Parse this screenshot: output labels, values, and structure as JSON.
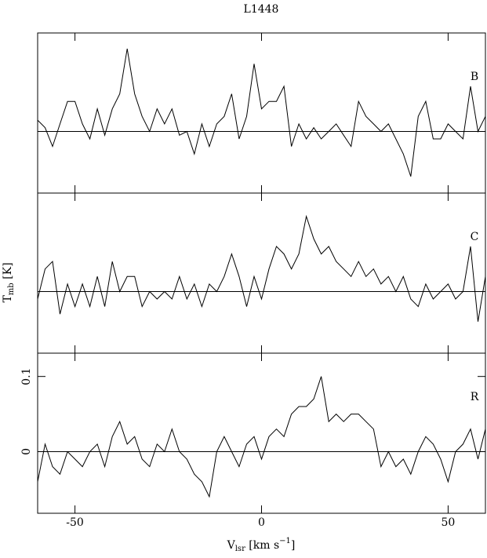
{
  "chart_data": {
    "type": "line",
    "title": "L1448",
    "x_label": {
      "main": "V",
      "sub": "lsr",
      "rest": " [km s",
      "sup": "−1",
      "end": "]"
    },
    "y_label": {
      "main": "T",
      "sub": "mb",
      "rest": " [K]"
    },
    "xlim": [
      -60,
      60
    ],
    "xticks": [
      -50,
      0,
      50
    ],
    "ylim": [
      -0.082,
      0.131
    ],
    "yticks": [
      0,
      0.1
    ],
    "x": [
      -60,
      -58,
      -56,
      -54,
      -52,
      -50,
      -48,
      -46,
      -44,
      -42,
      -40,
      -38,
      -36,
      -34,
      -32,
      -30,
      -28,
      -26,
      -24,
      -22,
      -20,
      -18,
      -16,
      -14,
      -12,
      -10,
      -8,
      -6,
      -4,
      -2,
      0,
      2,
      4,
      6,
      8,
      10,
      12,
      14,
      16,
      18,
      20,
      22,
      24,
      26,
      28,
      30,
      32,
      34,
      36,
      38,
      40,
      42,
      44,
      46,
      48,
      50,
      52,
      54,
      56,
      58,
      60
    ],
    "series": [
      {
        "name": "B",
        "color": "#000000",
        "values": [
          0.015,
          0.005,
          -0.02,
          0.01,
          0.04,
          0.04,
          0.01,
          -0.01,
          0.03,
          -0.005,
          0.03,
          0.05,
          0.11,
          0.05,
          0.02,
          0.0,
          0.03,
          0.01,
          0.03,
          -0.005,
          0.0,
          -0.03,
          0.01,
          -0.02,
          0.01,
          0.02,
          0.05,
          -0.01,
          0.02,
          0.09,
          0.03,
          0.04,
          0.04,
          0.06,
          -0.02,
          0.01,
          -0.01,
          0.005,
          -0.01,
          0.0,
          0.01,
          -0.005,
          -0.02,
          0.04,
          0.02,
          0.01,
          0.0,
          0.01,
          -0.01,
          -0.03,
          -0.06,
          0.02,
          0.04,
          -0.01,
          -0.01,
          0.01,
          0.0,
          -0.01,
          0.06,
          0.0,
          0.02
        ]
      },
      {
        "name": "C",
        "color": "#000000",
        "values": [
          -0.01,
          0.03,
          0.04,
          -0.03,
          0.01,
          -0.02,
          0.01,
          -0.02,
          0.02,
          -0.02,
          0.04,
          0.0,
          0.02,
          0.02,
          -0.02,
          0.0,
          -0.01,
          0.0,
          -0.01,
          0.02,
          -0.01,
          0.01,
          -0.02,
          0.01,
          0.0,
          0.02,
          0.05,
          0.02,
          -0.02,
          0.02,
          -0.01,
          0.03,
          0.06,
          0.05,
          0.03,
          0.05,
          0.1,
          0.07,
          0.05,
          0.06,
          0.04,
          0.03,
          0.02,
          0.04,
          0.02,
          0.03,
          0.01,
          0.02,
          0.0,
          0.02,
          -0.01,
          -0.02,
          0.01,
          -0.01,
          0.0,
          0.01,
          -0.01,
          0.0,
          0.06,
          -0.04,
          0.02
        ]
      },
      {
        "name": "R",
        "color": "#000000",
        "values": [
          -0.04,
          0.01,
          -0.02,
          -0.03,
          0.0,
          -0.01,
          -0.02,
          0.0,
          0.01,
          -0.02,
          0.02,
          0.04,
          0.01,
          0.02,
          -0.01,
          -0.02,
          0.01,
          0.0,
          0.03,
          0.0,
          -0.01,
          -0.03,
          -0.04,
          -0.06,
          0.0,
          0.02,
          0.0,
          -0.02,
          0.01,
          0.02,
          -0.01,
          0.02,
          0.03,
          0.02,
          0.05,
          0.06,
          0.06,
          0.07,
          0.1,
          0.04,
          0.05,
          0.04,
          0.05,
          0.05,
          0.04,
          0.03,
          -0.02,
          0.0,
          -0.02,
          -0.01,
          -0.03,
          0.0,
          0.02,
          0.01,
          -0.01,
          -0.04,
          0.0,
          0.01,
          0.03,
          -0.01,
          0.03
        ]
      }
    ]
  }
}
